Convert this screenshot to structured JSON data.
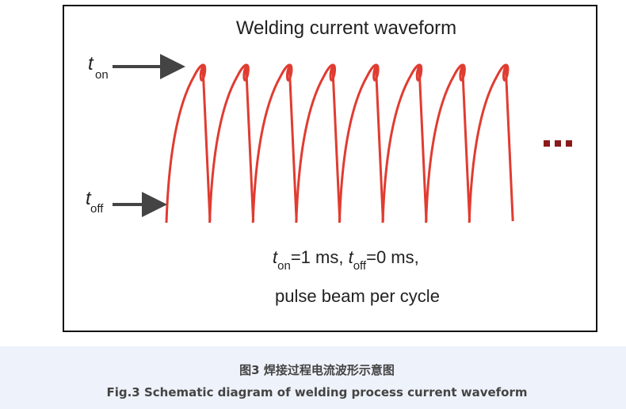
{
  "figure": {
    "title": "Welding current waveform",
    "t_on_label": {
      "t": "t",
      "sub": "on"
    },
    "t_off_label": {
      "t": "t",
      "sub": "off"
    },
    "params_line": [
      "t",
      "on",
      "=1 ms, ",
      "t",
      "off",
      "=0 ms,"
    ],
    "params_line_2": "pulse beam per cycle"
  },
  "caption": {
    "chinese": "图3 焊接过程电流波形示意图",
    "english": "Fig.3 Schematic diagram of welding process current waveform"
  }
}
